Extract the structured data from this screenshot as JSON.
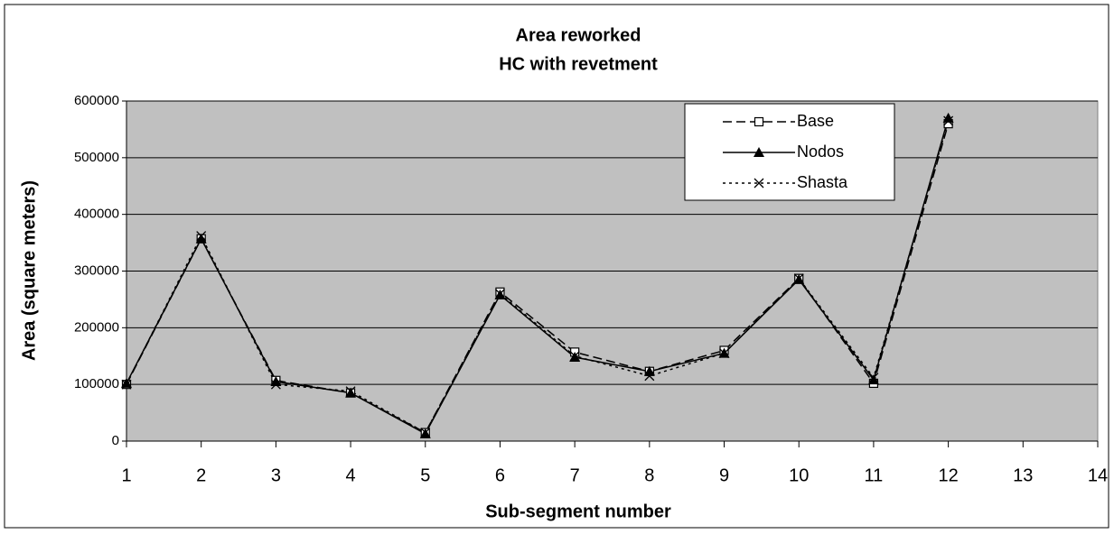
{
  "chart_data": {
    "type": "line",
    "title": "Area reworked",
    "subtitle": "HC with revetment",
    "xlabel": "Sub-segment number",
    "ylabel": "Area (square meters)",
    "x": [
      1,
      2,
      3,
      4,
      5,
      6,
      7,
      8,
      9,
      10,
      11,
      12
    ],
    "series": [
      {
        "name": "Base",
        "color": "#000000",
        "dash": "dashed",
        "marker": "square",
        "values": [
          100000,
          357000,
          107000,
          85000,
          15000,
          263000,
          157000,
          123000,
          160000,
          287000,
          102000,
          560000
        ]
      },
      {
        "name": "Nodos",
        "color": "#000000",
        "dash": "solid",
        "marker": "triangle",
        "values": [
          102000,
          357000,
          105000,
          85000,
          13000,
          258000,
          148000,
          123000,
          155000,
          285000,
          108000,
          570000
        ]
      },
      {
        "name": "Shasta",
        "color": "#000000",
        "dash": "dotted",
        "marker": "x",
        "values": [
          100000,
          362000,
          100000,
          88000,
          15000,
          260000,
          150000,
          115000,
          155000,
          287000,
          112000,
          565000
        ]
      }
    ],
    "xlim": [
      1,
      14
    ],
    "xticks": [
      1,
      2,
      3,
      4,
      5,
      6,
      7,
      8,
      9,
      10,
      11,
      12,
      13,
      14
    ],
    "ylim": [
      0,
      600000
    ],
    "yticks": [
      0,
      100000,
      200000,
      300000,
      400000,
      500000,
      600000
    ],
    "grid": true,
    "plot_background": "#c0c0c0",
    "legend": "upper right"
  }
}
